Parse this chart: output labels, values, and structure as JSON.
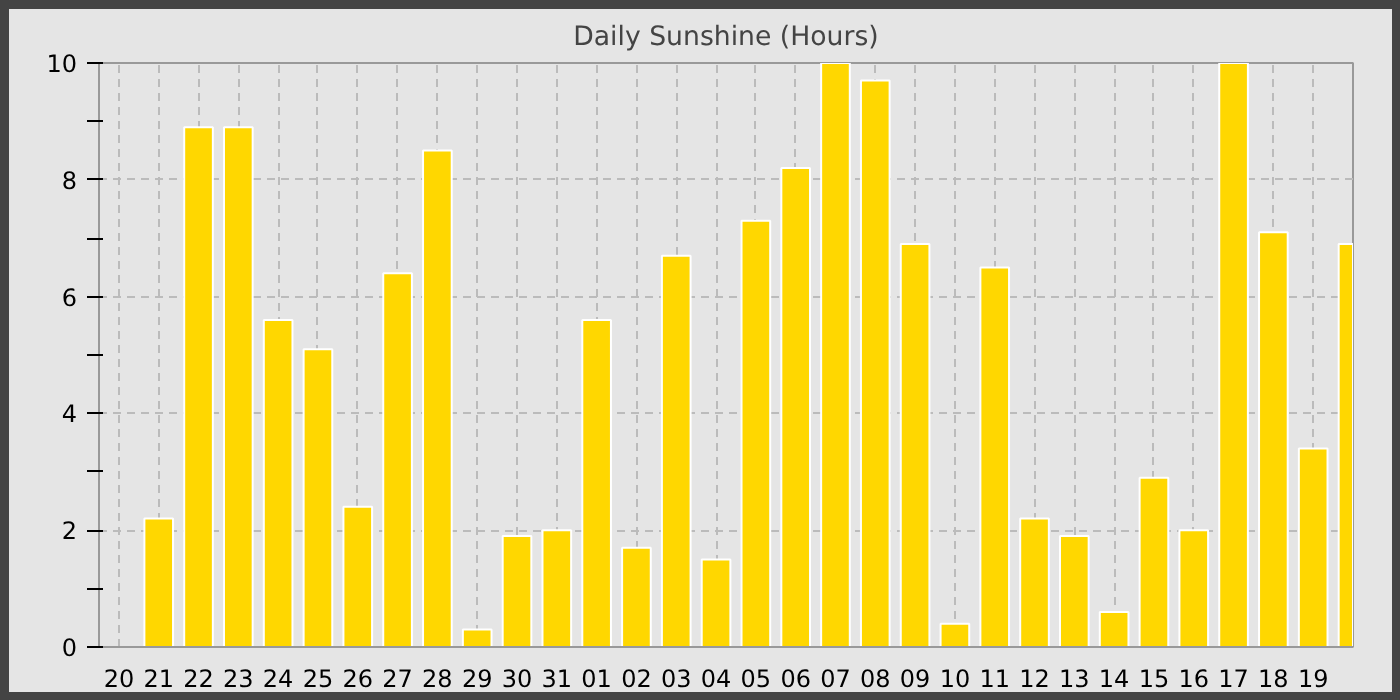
{
  "chart_data": {
    "type": "bar",
    "title": "Daily Sunshine (Hours)",
    "categories": [
      "20",
      "21",
      "22",
      "23",
      "24",
      "25",
      "26",
      "27",
      "28",
      "29",
      "30",
      "31",
      "01",
      "02",
      "03",
      "04",
      "05",
      "06",
      "07",
      "08",
      "09",
      "10",
      "11",
      "12",
      "13",
      "14",
      "15",
      "16",
      "17",
      "18",
      "19",
      null
    ],
    "values": [
      null,
      2.2,
      8.9,
      8.9,
      5.6,
      5.1,
      2.4,
      6.4,
      8.5,
      0.3,
      1.9,
      2.0,
      5.6,
      1.7,
      6.7,
      1.5,
      7.3,
      8.2,
      10,
      9.7,
      6.9,
      0.4,
      6.5,
      2.2,
      1.9,
      0.6,
      2.9,
      2.0,
      10,
      7.1,
      3.4,
      6.9
    ],
    "color": "#ffd700",
    "ylim": [
      0,
      10
    ],
    "yticks": [
      0,
      {
        "value": 1,
        "label": null
      },
      2,
      {
        "value": 3,
        "label": null
      },
      4,
      {
        "value": 5,
        "label": null
      },
      6,
      {
        "value": 7,
        "label": null
      },
      8,
      {
        "value": 9,
        "label": null
      },
      10
    ],
    "grid": true
  }
}
